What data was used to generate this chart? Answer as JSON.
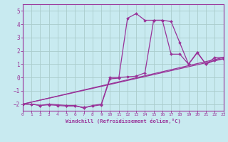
{
  "background_color": "#c8eaf0",
  "grid_color": "#aacccc",
  "line_color": "#993399",
  "xlabel": "Windchill (Refroidissement éolien,°C)",
  "xlim": [
    0,
    23
  ],
  "ylim": [
    -2.5,
    5.5
  ],
  "yticks": [
    -2,
    -1,
    0,
    1,
    2,
    3,
    4,
    5
  ],
  "xticks": [
    0,
    1,
    2,
    3,
    4,
    5,
    6,
    7,
    8,
    9,
    10,
    11,
    12,
    13,
    14,
    15,
    16,
    17,
    18,
    19,
    20,
    21,
    22,
    23
  ],
  "series": [
    {
      "x": [
        0,
        1,
        2,
        3,
        4,
        5,
        6,
        7,
        8,
        9,
        10,
        11,
        12,
        13,
        14,
        15,
        16,
        17,
        18,
        19,
        20,
        21,
        22,
        23
      ],
      "y": [
        -2.0,
        -2.0,
        -2.1,
        -2.05,
        -2.1,
        -2.15,
        -2.15,
        -2.25,
        -2.15,
        -2.05,
        -0.1,
        -0.05,
        4.45,
        4.8,
        4.3,
        4.3,
        4.3,
        1.75,
        1.75,
        1.0,
        1.9,
        1.0,
        1.3,
        1.4
      ]
    },
    {
      "x": [
        0,
        1,
        2,
        3,
        4,
        5,
        6,
        7,
        8,
        9,
        10,
        11,
        12,
        13,
        14,
        15,
        16,
        17,
        18,
        19,
        20,
        21,
        22,
        23
      ],
      "y": [
        -2.0,
        -2.0,
        -2.1,
        -2.0,
        -2.05,
        -2.1,
        -2.1,
        -2.3,
        -2.1,
        -2.0,
        0.0,
        0.0,
        0.05,
        0.1,
        0.35,
        4.3,
        4.3,
        4.2,
        2.6,
        1.0,
        1.85,
        1.0,
        1.5,
        1.5
      ]
    },
    {
      "x": [
        0,
        23
      ],
      "y": [
        -2.0,
        1.5
      ]
    },
    {
      "x": [
        0,
        23
      ],
      "y": [
        -2.0,
        1.4
      ]
    }
  ]
}
